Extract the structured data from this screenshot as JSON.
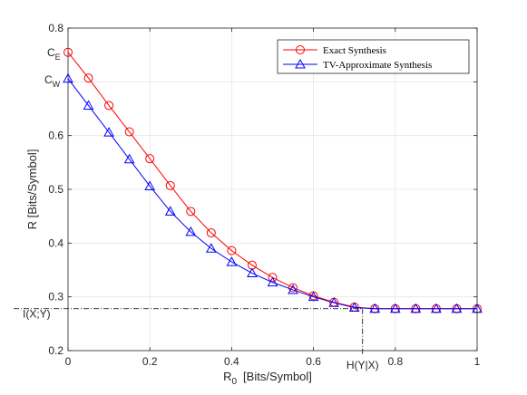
{
  "chart_data": {
    "type": "line",
    "title": "",
    "xlabel": "R",
    "xlabel_sub": "0",
    "xlabel_unit": "[Bits/Symbol]",
    "ylabel": "R  [Bits/Symbol]",
    "xlim": [
      0,
      1
    ],
    "ylim": [
      0.2,
      0.8
    ],
    "x_ticks": [
      0,
      0.2,
      0.4,
      0.6,
      0.8,
      1
    ],
    "x_tick_labels": [
      "0",
      "0.2",
      "0.4",
      "0.6",
      "0.8",
      "1"
    ],
    "y_ticks": [
      0.2,
      0.3,
      0.4,
      0.5,
      0.6,
      0.7,
      0.8
    ],
    "y_tick_labels": [
      "0.2",
      "0.3",
      "0.4",
      "0.5",
      "0.6",
      "",
      "0.8"
    ],
    "grid": true,
    "legend_position": "top-right",
    "x": [
      0,
      0.05,
      0.1,
      0.15,
      0.2,
      0.25,
      0.3,
      0.35,
      0.4,
      0.45,
      0.5,
      0.55,
      0.6,
      0.65,
      0.7,
      0.75,
      0.8,
      0.85,
      0.9,
      0.95,
      1.0
    ],
    "series": [
      {
        "name": "Exact Synthesis",
        "color": "#ff0000",
        "marker": "circle",
        "values": [
          0.755,
          0.707,
          0.656,
          0.607,
          0.557,
          0.507,
          0.459,
          0.419,
          0.386,
          0.359,
          0.336,
          0.317,
          0.302,
          0.29,
          0.281,
          0.278,
          0.278,
          0.278,
          0.278,
          0.278,
          0.278
        ]
      },
      {
        "name": "TV-Approximate Synthesis",
        "color": "#0000ff",
        "marker": "triangle",
        "values": [
          0.706,
          0.656,
          0.606,
          0.556,
          0.506,
          0.459,
          0.421,
          0.39,
          0.365,
          0.344,
          0.327,
          0.313,
          0.3,
          0.289,
          0.28,
          0.278,
          0.278,
          0.278,
          0.278,
          0.278,
          0.278
        ]
      }
    ],
    "annotations": {
      "ce_label": "C",
      "ce_sub": "E",
      "ce_value": 0.755,
      "cw_label": "C",
      "cw_sub": "W",
      "cw_value": 0.706,
      "ixy_label": "I(X;Y)",
      "ixy_value": 0.278,
      "hyx_label": "H(Y|X)",
      "hyx_value": 0.72
    }
  }
}
